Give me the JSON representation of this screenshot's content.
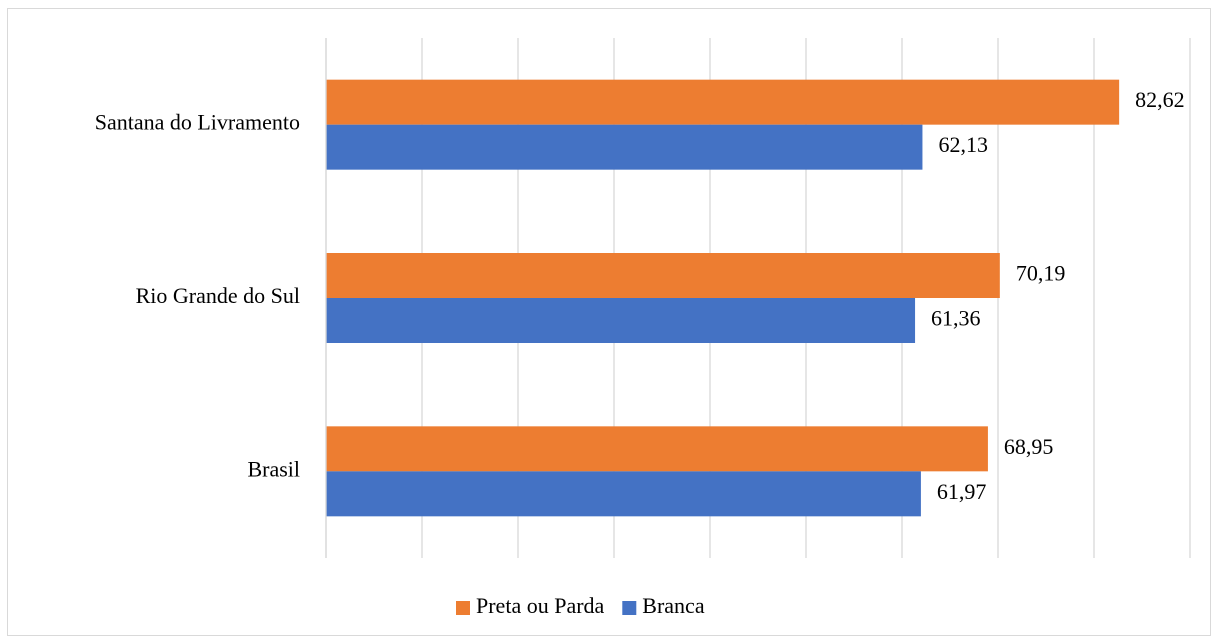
{
  "chart_data": {
    "type": "bar",
    "orientation": "horizontal",
    "categories": [
      "Santana do Livramento",
      "Rio Grande do Sul",
      "Brasil"
    ],
    "series": [
      {
        "name": "Preta ou Parda",
        "color": "#ED7D31",
        "values": [
          82.62,
          70.19,
          68.95
        ],
        "value_labels": [
          "82,62",
          "70,19",
          "68,95"
        ]
      },
      {
        "name": "Branca",
        "color": "#4472C4",
        "values": [
          62.13,
          61.36,
          61.97
        ],
        "value_labels": [
          "62,13",
          "61,36",
          "61,97"
        ]
      }
    ],
    "xlim": [
      0,
      90
    ],
    "xticks": [
      0,
      10,
      20,
      30,
      40,
      50,
      60,
      70,
      80,
      90
    ],
    "grid": true,
    "legend": "bottom"
  }
}
